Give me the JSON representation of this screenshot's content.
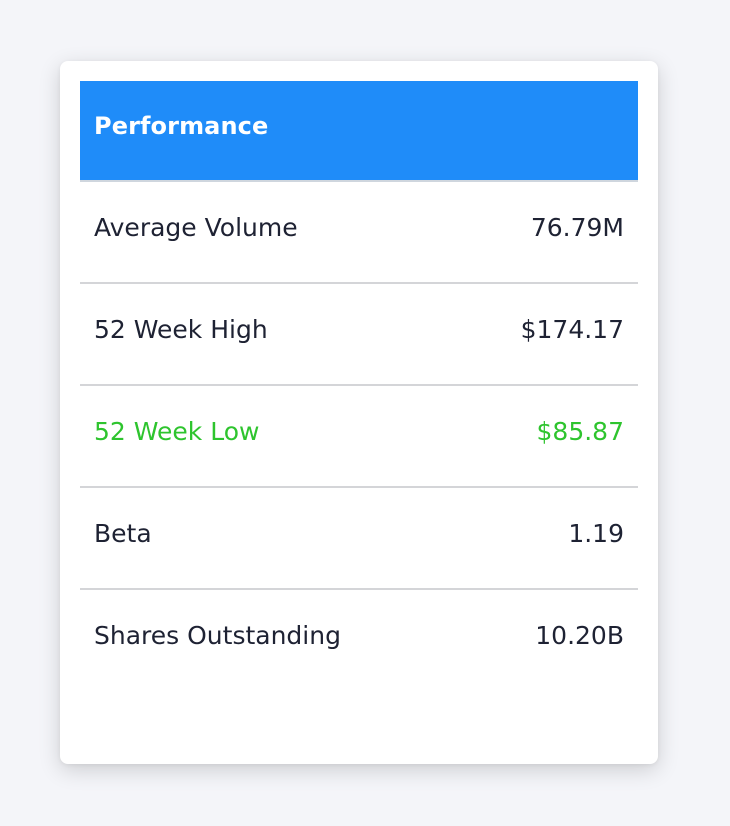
{
  "card": {
    "title": "Performance",
    "rows": [
      {
        "label": "Average Volume",
        "value": "76.79M"
      },
      {
        "label": "52 Week High",
        "value": "$174.17"
      },
      {
        "label": "52 Week Low",
        "value": "$85.87",
        "highlight_color": "#2ec42e"
      },
      {
        "label": "Beta",
        "value": "1.19"
      },
      {
        "label": "Shares Outstanding",
        "value": "10.20B"
      }
    ]
  },
  "colors": {
    "header": "#1f8cf9",
    "text": "#1e2233",
    "highlight": "#2ec42e",
    "background": "#f4f5f9"
  }
}
